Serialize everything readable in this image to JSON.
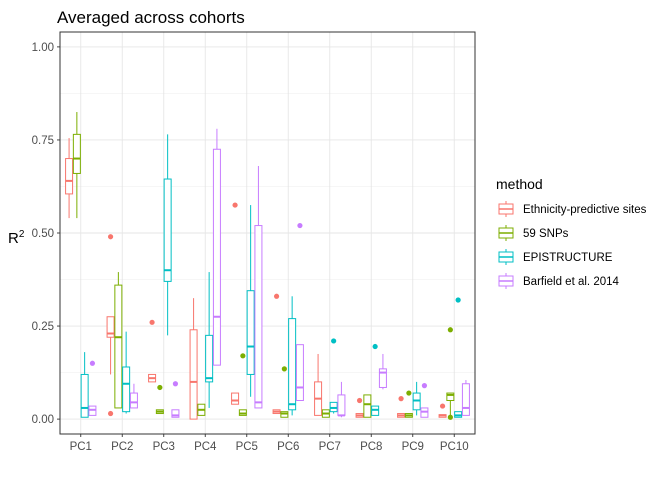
{
  "chart_data": {
    "type": "boxplot",
    "title": "Averaged across cohorts",
    "xlabel": "",
    "ylabel": "R",
    "ylabel_superscript": "2",
    "ylim": [
      -0.04,
      1.04
    ],
    "yticks": [
      0.0,
      0.25,
      0.5,
      0.75,
      1.0
    ],
    "ytick_labels": [
      "0.00",
      "0.25",
      "0.50",
      "0.75",
      "1.00"
    ],
    "grid": true,
    "legend_position": "right",
    "legend_title": "method",
    "categories": [
      "PC1",
      "PC2",
      "PC3",
      "PC4",
      "PC5",
      "PC6",
      "PC7",
      "PC8",
      "PC9",
      "PC10"
    ],
    "series": [
      {
        "name": "Ethnicity-predictive sites",
        "color": "#F8766D",
        "boxes": [
          {
            "wlo": 0.54,
            "q1": 0.605,
            "med": 0.64,
            "q3": 0.7,
            "whi": 0.755,
            "out": []
          },
          {
            "wlo": 0.12,
            "q1": 0.22,
            "med": 0.23,
            "q3": 0.275,
            "whi": 0.275,
            "out": [
              0.49,
              0.015
            ]
          },
          {
            "wlo": 0.1,
            "q1": 0.1,
            "med": 0.11,
            "q3": 0.12,
            "whi": 0.12,
            "out": [
              0.26
            ]
          },
          {
            "wlo": 0.0,
            "q1": 0.0,
            "med": 0.1,
            "q3": 0.24,
            "whi": 0.325,
            "out": []
          },
          {
            "wlo": 0.04,
            "q1": 0.04,
            "med": 0.05,
            "q3": 0.07,
            "whi": 0.07,
            "out": [
              0.575
            ]
          },
          {
            "wlo": 0.015,
            "q1": 0.015,
            "med": 0.02,
            "q3": 0.025,
            "whi": 0.025,
            "out": [
              0.33
            ]
          },
          {
            "wlo": 0.01,
            "q1": 0.01,
            "med": 0.055,
            "q3": 0.1,
            "whi": 0.175,
            "out": []
          },
          {
            "wlo": 0.005,
            "q1": 0.005,
            "med": 0.01,
            "q3": 0.015,
            "whi": 0.015,
            "out": [
              0.05
            ]
          },
          {
            "wlo": 0.005,
            "q1": 0.005,
            "med": 0.01,
            "q3": 0.015,
            "whi": 0.015,
            "out": [
              0.055
            ]
          },
          {
            "wlo": 0.005,
            "q1": 0.005,
            "med": 0.01,
            "q3": 0.012,
            "whi": 0.012,
            "out": [
              0.035
            ]
          }
        ]
      },
      {
        "name": "59 SNPs",
        "color": "#7CAE00",
        "boxes": [
          {
            "wlo": 0.54,
            "q1": 0.66,
            "med": 0.7,
            "q3": 0.765,
            "whi": 0.825,
            "out": []
          },
          {
            "wlo": 0.03,
            "q1": 0.03,
            "med": 0.22,
            "q3": 0.36,
            "whi": 0.395,
            "out": []
          },
          {
            "wlo": 0.015,
            "q1": 0.015,
            "med": 0.02,
            "q3": 0.025,
            "whi": 0.025,
            "out": [
              0.085
            ]
          },
          {
            "wlo": 0.01,
            "q1": 0.01,
            "med": 0.025,
            "q3": 0.04,
            "whi": 0.04,
            "out": []
          },
          {
            "wlo": 0.01,
            "q1": 0.01,
            "med": 0.015,
            "q3": 0.025,
            "whi": 0.025,
            "out": [
              0.17
            ]
          },
          {
            "wlo": 0.005,
            "q1": 0.005,
            "med": 0.015,
            "q3": 0.02,
            "whi": 0.02,
            "out": [
              0.135
            ]
          },
          {
            "wlo": 0.005,
            "q1": 0.005,
            "med": 0.015,
            "q3": 0.025,
            "whi": 0.025,
            "out": []
          },
          {
            "wlo": 0.005,
            "q1": 0.005,
            "med": 0.04,
            "q3": 0.065,
            "whi": 0.065,
            "out": []
          },
          {
            "wlo": 0.005,
            "q1": 0.005,
            "med": 0.01,
            "q3": 0.015,
            "whi": 0.015,
            "out": [
              0.07
            ]
          },
          {
            "wlo": 0.005,
            "q1": 0.05,
            "med": 0.065,
            "q3": 0.07,
            "whi": 0.07,
            "out": [
              0.24,
              0.005
            ]
          }
        ]
      },
      {
        "name": "EPISTRUCTURE",
        "color": "#00BFC4",
        "boxes": [
          {
            "wlo": 0.005,
            "q1": 0.005,
            "med": 0.03,
            "q3": 0.12,
            "whi": 0.18,
            "out": []
          },
          {
            "wlo": 0.015,
            "q1": 0.02,
            "med": 0.095,
            "q3": 0.14,
            "whi": 0.235,
            "out": []
          },
          {
            "wlo": 0.225,
            "q1": 0.37,
            "med": 0.4,
            "q3": 0.645,
            "whi": 0.765,
            "out": []
          },
          {
            "wlo": 0.03,
            "q1": 0.1,
            "med": 0.11,
            "q3": 0.225,
            "whi": 0.395,
            "out": []
          },
          {
            "wlo": 0.06,
            "q1": 0.12,
            "med": 0.195,
            "q3": 0.345,
            "whi": 0.575,
            "out": []
          },
          {
            "wlo": 0.01,
            "q1": 0.025,
            "med": 0.04,
            "q3": 0.27,
            "whi": 0.33,
            "out": []
          },
          {
            "wlo": 0.015,
            "q1": 0.02,
            "med": 0.03,
            "q3": 0.045,
            "whi": 0.045,
            "out": [
              0.21
            ]
          },
          {
            "wlo": 0.01,
            "q1": 0.01,
            "med": 0.025,
            "q3": 0.035,
            "whi": 0.035,
            "out": [
              0.195
            ]
          },
          {
            "wlo": 0.01,
            "q1": 0.025,
            "med": 0.05,
            "q3": 0.07,
            "whi": 0.1,
            "out": []
          },
          {
            "wlo": 0.005,
            "q1": 0.005,
            "med": 0.01,
            "q3": 0.02,
            "whi": 0.02,
            "out": [
              0.32
            ]
          }
        ]
      },
      {
        "name": "Barfield et al. 2014",
        "color": "#C77CFF",
        "boxes": [
          {
            "wlo": 0.01,
            "q1": 0.01,
            "med": 0.025,
            "q3": 0.035,
            "whi": 0.035,
            "out": [
              0.15
            ]
          },
          {
            "wlo": 0.03,
            "q1": 0.03,
            "med": 0.045,
            "q3": 0.07,
            "whi": 0.095,
            "out": []
          },
          {
            "wlo": 0.005,
            "q1": 0.005,
            "med": 0.01,
            "q3": 0.025,
            "whi": 0.025,
            "out": [
              0.095
            ]
          },
          {
            "wlo": 0.145,
            "q1": 0.145,
            "med": 0.275,
            "q3": 0.725,
            "whi": 0.78,
            "out": []
          },
          {
            "wlo": 0.03,
            "q1": 0.03,
            "med": 0.045,
            "q3": 0.52,
            "whi": 0.68,
            "out": []
          },
          {
            "wlo": 0.05,
            "q1": 0.05,
            "med": 0.085,
            "q3": 0.2,
            "whi": 0.2,
            "out": [
              0.52
            ]
          },
          {
            "wlo": 0.005,
            "q1": 0.01,
            "med": 0.01,
            "q3": 0.065,
            "whi": 0.1,
            "out": []
          },
          {
            "wlo": 0.08,
            "q1": 0.085,
            "med": 0.125,
            "q3": 0.135,
            "whi": 0.175,
            "out": []
          },
          {
            "wlo": 0.005,
            "q1": 0.005,
            "med": 0.02,
            "q3": 0.03,
            "whi": 0.03,
            "out": [
              0.09
            ]
          },
          {
            "wlo": 0.01,
            "q1": 0.01,
            "med": 0.03,
            "q3": 0.095,
            "whi": 0.105,
            "out": []
          }
        ]
      }
    ]
  }
}
